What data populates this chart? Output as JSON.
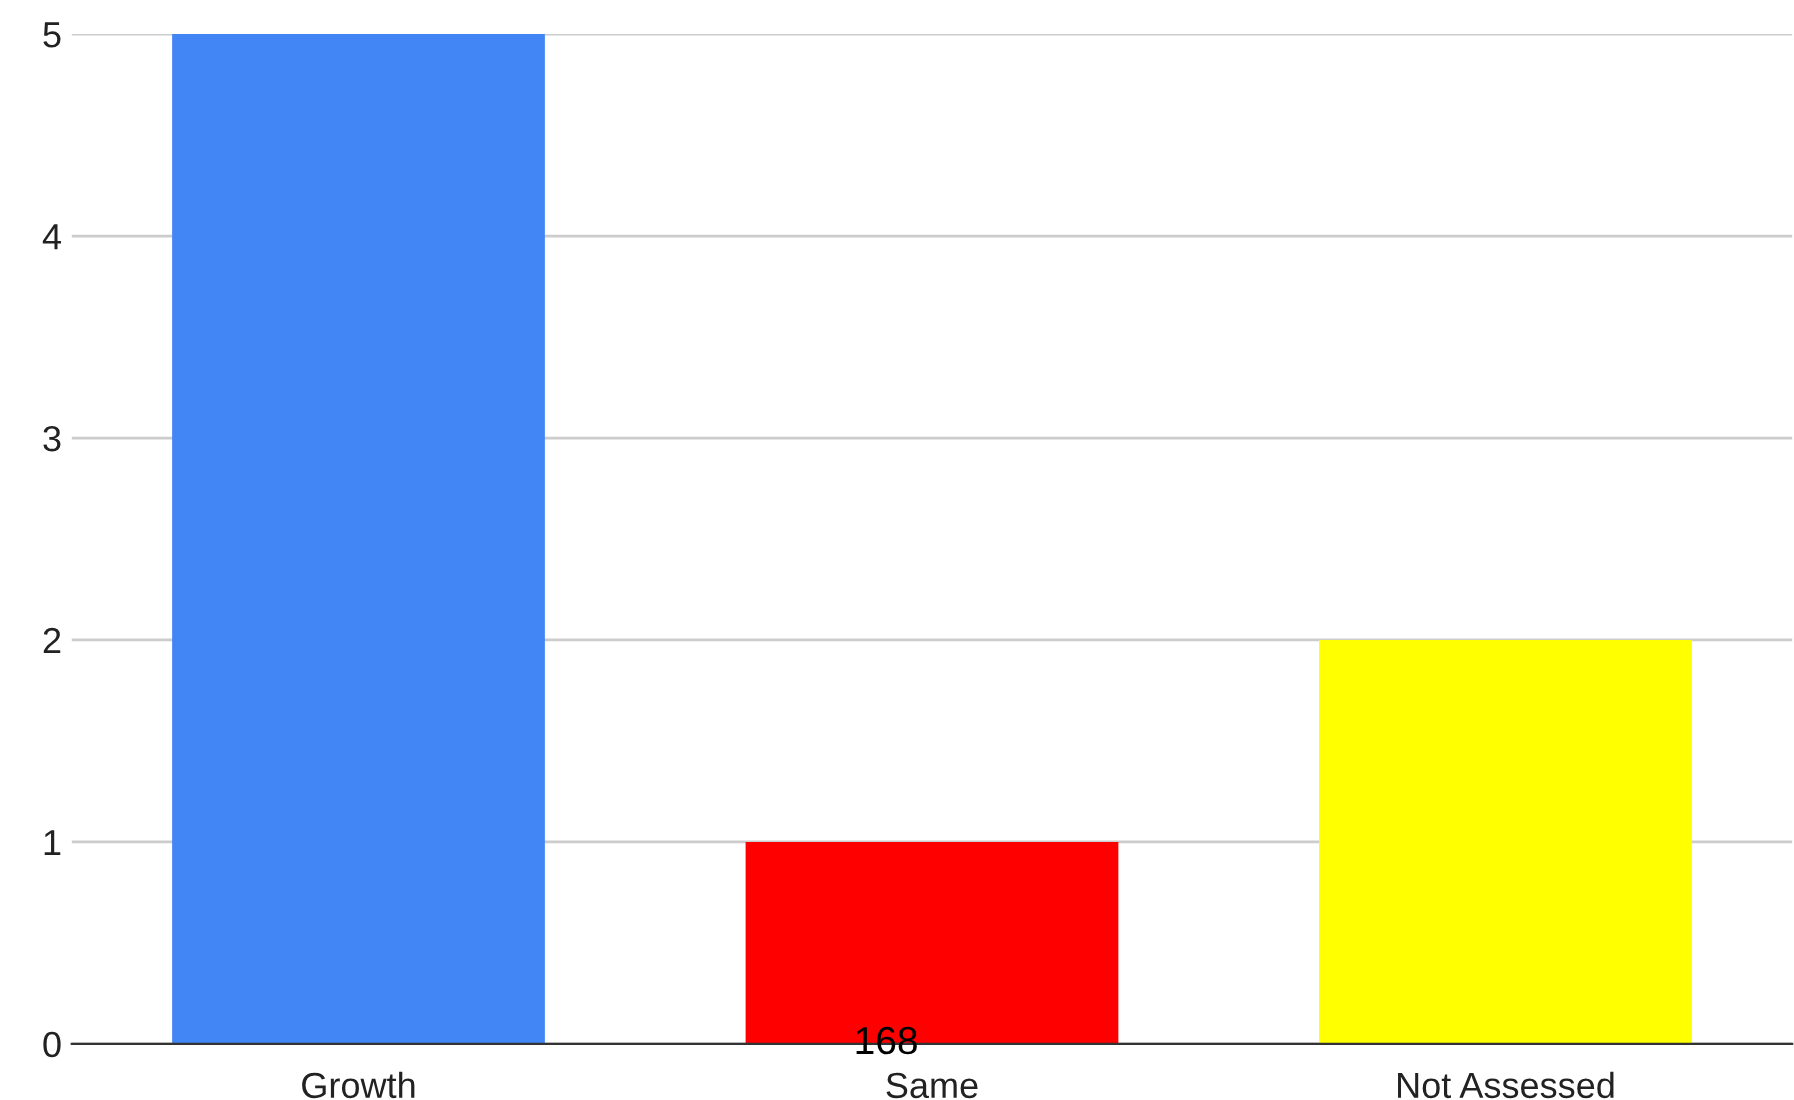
{
  "chart_data": {
    "type": "bar",
    "categories": [
      "Growth",
      "Same",
      "Not Assessed"
    ],
    "values": [
      5,
      1,
      2
    ],
    "colors": [
      "#4285f4",
      "#ff0000",
      "#ffff00"
    ],
    "ylim": [
      0,
      5
    ],
    "yticks": [
      0,
      1,
      2,
      3,
      4,
      5
    ],
    "grid": "y",
    "annotations": [
      {
        "text": "168",
        "x": "Same",
        "y": 0
      }
    ]
  }
}
